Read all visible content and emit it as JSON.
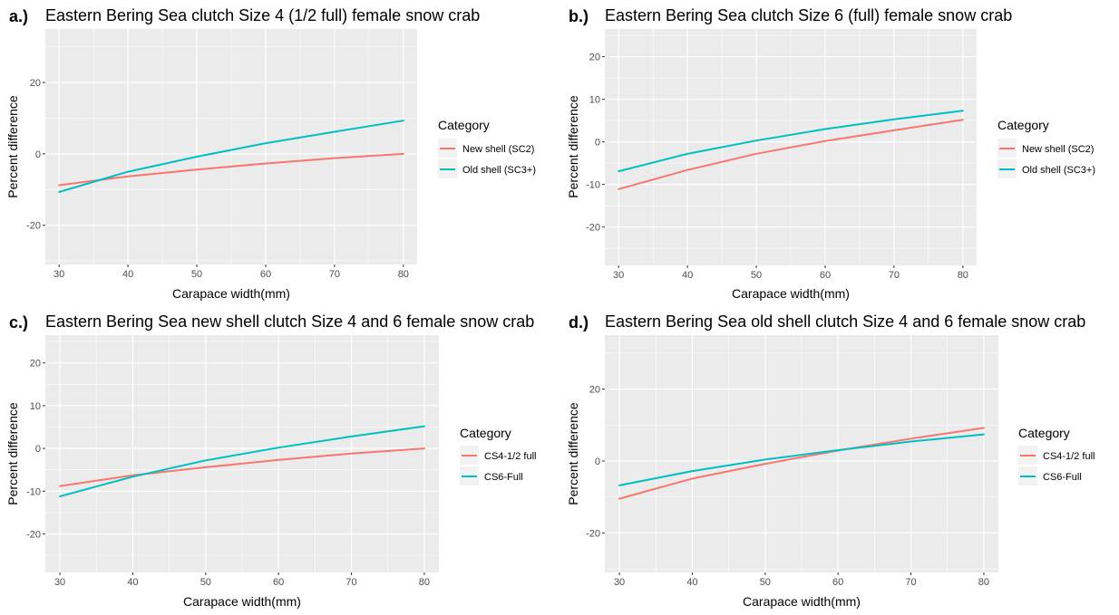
{
  "chart_data": [
    {
      "type": "line",
      "tag": "a.)",
      "title": "Eastern Bering Sea clutch Size 4 (1/2 full) female snow crab",
      "xlabel": "Carapace width(mm)",
      "ylabel": "Percent difference",
      "xlim": [
        28,
        82
      ],
      "ylim": [
        -31,
        35
      ],
      "xticks": [
        30,
        40,
        50,
        60,
        70,
        80
      ],
      "yticks": [
        -20,
        0,
        20
      ],
      "legend_title": "Category",
      "series": [
        {
          "name": "New shell (SC2)",
          "color": "#F8766D",
          "x": [
            30,
            40,
            50,
            60,
            70,
            80
          ],
          "y": [
            -8.8,
            -6.3,
            -4.4,
            -2.7,
            -1.2,
            0
          ]
        },
        {
          "name": "Old shell (SC3+)",
          "color": "#00BFC4",
          "x": [
            30,
            40,
            50,
            60,
            70,
            80
          ],
          "y": [
            -10.7,
            -5.0,
            -0.8,
            3.0,
            6.2,
            9.3
          ]
        }
      ]
    },
    {
      "type": "line",
      "tag": "b.)",
      "title": "Eastern Bering Sea clutch Size 6 (full) female snow crab",
      "xlabel": "Carapace width(mm)",
      "ylabel": "Percent difference",
      "xlim": [
        28,
        82
      ],
      "ylim": [
        -29,
        26.5
      ],
      "xticks": [
        30,
        40,
        50,
        60,
        70,
        80
      ],
      "yticks": [
        -20,
        -10,
        0,
        10,
        20
      ],
      "legend_title": "Category",
      "series": [
        {
          "name": "New shell (SC2)",
          "color": "#F8766D",
          "x": [
            30,
            40,
            50,
            60,
            70,
            80
          ],
          "y": [
            -11.1,
            -6.6,
            -2.8,
            0.2,
            2.7,
            5.2
          ]
        },
        {
          "name": "Old shell (SC3+)",
          "color": "#00BFC4",
          "x": [
            30,
            40,
            50,
            60,
            70,
            80
          ],
          "y": [
            -6.9,
            -2.8,
            0.3,
            3.0,
            5.3,
            7.3
          ]
        }
      ]
    },
    {
      "type": "line",
      "tag": "c.)",
      "title": "Eastern Bering Sea new shell clutch Size 4 and 6 female snow crab",
      "xlabel": "Carapace width(mm)",
      "ylabel": "Percent difference",
      "xlim": [
        28,
        82
      ],
      "ylim": [
        -29,
        26.5
      ],
      "xticks": [
        30,
        40,
        50,
        60,
        70,
        80
      ],
      "yticks": [
        -20,
        -10,
        0,
        10,
        20
      ],
      "legend_title": "Category",
      "series": [
        {
          "name": "CS4-1/2 full",
          "color": "#F8766D",
          "x": [
            30,
            40,
            50,
            60,
            70,
            80
          ],
          "y": [
            -8.8,
            -6.3,
            -4.4,
            -2.7,
            -1.2,
            0
          ]
        },
        {
          "name": "CS6-Full",
          "color": "#00BFC4",
          "x": [
            30,
            40,
            50,
            60,
            70,
            80
          ],
          "y": [
            -11.2,
            -6.6,
            -2.8,
            0.2,
            2.8,
            5.2
          ]
        }
      ]
    },
    {
      "type": "line",
      "tag": "d.)",
      "title": "Eastern Bering Sea old shell clutch Size 4 and 6 female snow crab",
      "xlabel": "Carapace width(mm)",
      "ylabel": "Percent difference",
      "xlim": [
        28,
        82
      ],
      "ylim": [
        -31,
        35
      ],
      "xticks": [
        30,
        40,
        50,
        60,
        70,
        80
      ],
      "yticks": [
        -20,
        0,
        20
      ],
      "legend_title": "Category",
      "series": [
        {
          "name": "CS4-1/2 full",
          "color": "#F8766D",
          "x": [
            30,
            40,
            50,
            60,
            70,
            80
          ],
          "y": [
            -10.5,
            -4.9,
            -0.8,
            2.9,
            6.2,
            9.2
          ]
        },
        {
          "name": "CS6-Full",
          "color": "#00BFC4",
          "x": [
            30,
            40,
            50,
            60,
            70,
            80
          ],
          "y": [
            -6.8,
            -2.8,
            0.4,
            3.0,
            5.4,
            7.4
          ]
        }
      ]
    }
  ]
}
